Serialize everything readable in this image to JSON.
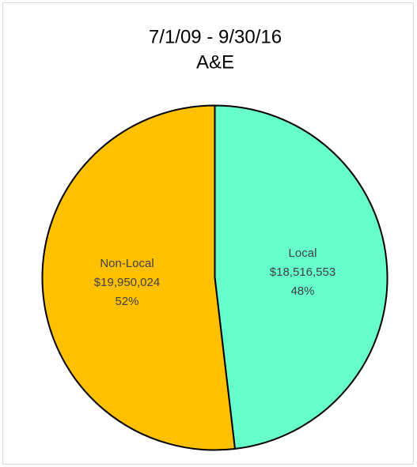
{
  "chart_data": {
    "type": "pie",
    "title": [
      "7/1/09 - 9/30/16",
      "A&E"
    ],
    "categories": [
      "Local",
      "Non-Local"
    ],
    "values": [
      18516553,
      19950024
    ],
    "value_labels": [
      "$18,516,553",
      "$19,950,024"
    ],
    "percentages": [
      48,
      52
    ],
    "percent_labels": [
      "48%",
      "52%"
    ],
    "colors": [
      "#66ffcc",
      "#ffc000"
    ]
  }
}
